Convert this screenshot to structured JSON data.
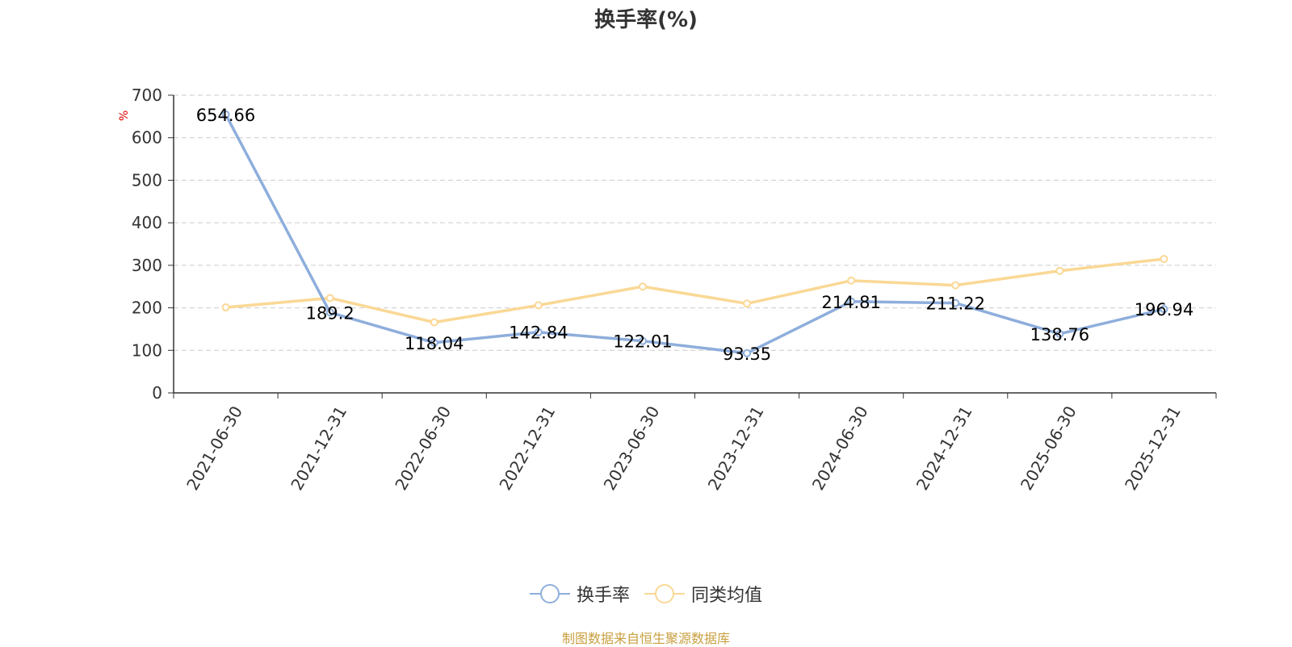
{
  "title": "换手率(%)",
  "unit": "%",
  "source_note": "制图数据来自恒生聚源数据库",
  "colors": {
    "series1": "#8eaedc",
    "series2": "#fad895",
    "source": "#c8a040",
    "grid": "#cccccc",
    "axis": "#333333"
  },
  "chart_data": {
    "type": "line",
    "title": "换手率(%)",
    "ylabel": "%",
    "ylim": [
      0,
      700
    ],
    "yticks": [
      0,
      100,
      200,
      300,
      400,
      500,
      600,
      700
    ],
    "grid": true,
    "legend_position": "bottom",
    "categories": [
      "2021-06-30",
      "2021-12-31",
      "2022-06-30",
      "2022-12-31",
      "2023-06-30",
      "2023-12-31",
      "2024-06-30",
      "2024-12-31",
      "2025-06-30",
      "2025-12-31"
    ],
    "series": [
      {
        "name": "换手率",
        "values": [
          654.66,
          189.2,
          118.04,
          142.84,
          122.01,
          93.35,
          214.81,
          211.22,
          138.76,
          196.94
        ],
        "labels": [
          "654.66",
          "189.2",
          "118.04",
          "142.84",
          "122.01",
          "93.35",
          "214.81",
          "211.22",
          "138.76",
          "196.94"
        ]
      },
      {
        "name": "同类均值",
        "values": [
          201,
          223,
          166,
          206,
          250,
          210,
          264,
          253,
          287,
          315
        ]
      }
    ]
  }
}
